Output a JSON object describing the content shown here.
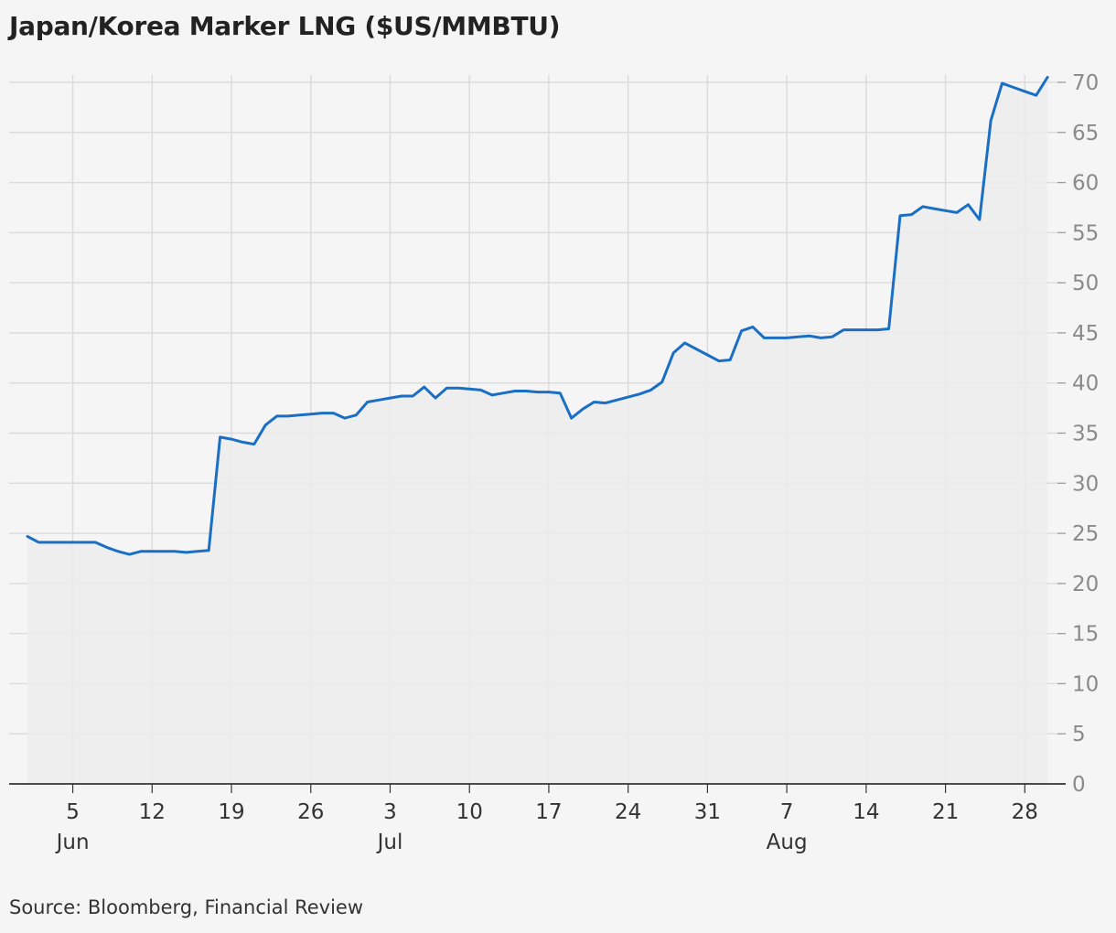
{
  "title": "Japan/Korea Marker LNG ($US/MMBTU)",
  "source": "Source: Bloomberg, Financial Review",
  "colors": {
    "line": "#1a6fc4",
    "area": "#ececec",
    "grid": "#dcdcdc",
    "axis": "#333333",
    "background": "#f5f5f5"
  },
  "chart_data": {
    "type": "area",
    "title": "Japan/Korea Marker LNG ($US/MMBTU)",
    "xlabel": "",
    "ylabel": "",
    "ylim": [
      0,
      70
    ],
    "xlim": [
      "2021-06-01",
      "2021-08-30"
    ],
    "grid": true,
    "y_axis_side": "right",
    "y_ticks": [
      0,
      5,
      10,
      15,
      20,
      25,
      30,
      35,
      40,
      45,
      50,
      55,
      60,
      65,
      70
    ],
    "x_ticks": [
      {
        "date": "2021-06-05",
        "label": "5",
        "month": "Jun"
      },
      {
        "date": "2021-06-12",
        "label": "12",
        "month": ""
      },
      {
        "date": "2021-06-19",
        "label": "19",
        "month": ""
      },
      {
        "date": "2021-06-26",
        "label": "26",
        "month": ""
      },
      {
        "date": "2021-07-03",
        "label": "3",
        "month": "Jul"
      },
      {
        "date": "2021-07-10",
        "label": "10",
        "month": ""
      },
      {
        "date": "2021-07-17",
        "label": "17",
        "month": ""
      },
      {
        "date": "2021-07-24",
        "label": "24",
        "month": ""
      },
      {
        "date": "2021-07-31",
        "label": "31",
        "month": ""
      },
      {
        "date": "2021-08-07",
        "label": "7",
        "month": "Aug"
      },
      {
        "date": "2021-08-14",
        "label": "14",
        "month": ""
      },
      {
        "date": "2021-08-21",
        "label": "21",
        "month": ""
      },
      {
        "date": "2021-08-28",
        "label": "28",
        "month": ""
      }
    ],
    "series": [
      {
        "points": [
          [
            "2021-06-01",
            24.7
          ],
          [
            "2021-06-02",
            24.1
          ],
          [
            "2021-06-03",
            24.1
          ],
          [
            "2021-06-04",
            24.1
          ],
          [
            "2021-06-05",
            24.1
          ],
          [
            "2021-06-06",
            24.1
          ],
          [
            "2021-06-07",
            24.1
          ],
          [
            "2021-06-08",
            23.6
          ],
          [
            "2021-06-09",
            23.2
          ],
          [
            "2021-06-10",
            22.9
          ],
          [
            "2021-06-11",
            23.2
          ],
          [
            "2021-06-12",
            23.2
          ],
          [
            "2021-06-13",
            23.2
          ],
          [
            "2021-06-14",
            23.2
          ],
          [
            "2021-06-15",
            23.1
          ],
          [
            "2021-06-16",
            23.2
          ],
          [
            "2021-06-17",
            23.3
          ],
          [
            "2021-06-18",
            34.6
          ],
          [
            "2021-06-19",
            34.4
          ],
          [
            "2021-06-20",
            34.1
          ],
          [
            "2021-06-21",
            33.9
          ],
          [
            "2021-06-22",
            35.8
          ],
          [
            "2021-06-23",
            36.7
          ],
          [
            "2021-06-24",
            36.7
          ],
          [
            "2021-06-25",
            36.8
          ],
          [
            "2021-06-26",
            36.9
          ],
          [
            "2021-06-27",
            37.0
          ],
          [
            "2021-06-28",
            37.0
          ],
          [
            "2021-06-29",
            36.5
          ],
          [
            "2021-06-30",
            36.8
          ],
          [
            "2021-07-01",
            38.1
          ],
          [
            "2021-07-02",
            38.3
          ],
          [
            "2021-07-03",
            38.5
          ],
          [
            "2021-07-04",
            38.7
          ],
          [
            "2021-07-05",
            38.7
          ],
          [
            "2021-07-06",
            39.6
          ],
          [
            "2021-07-07",
            38.5
          ],
          [
            "2021-07-08",
            39.5
          ],
          [
            "2021-07-09",
            39.5
          ],
          [
            "2021-07-10",
            39.4
          ],
          [
            "2021-07-11",
            39.3
          ],
          [
            "2021-07-12",
            38.8
          ],
          [
            "2021-07-13",
            39.0
          ],
          [
            "2021-07-14",
            39.2
          ],
          [
            "2021-07-15",
            39.2
          ],
          [
            "2021-07-16",
            39.1
          ],
          [
            "2021-07-17",
            39.1
          ],
          [
            "2021-07-18",
            39.0
          ],
          [
            "2021-07-19",
            36.5
          ],
          [
            "2021-07-20",
            37.4
          ],
          [
            "2021-07-21",
            38.1
          ],
          [
            "2021-07-22",
            38.0
          ],
          [
            "2021-07-23",
            38.3
          ],
          [
            "2021-07-24",
            38.6
          ],
          [
            "2021-07-25",
            38.9
          ],
          [
            "2021-07-26",
            39.3
          ],
          [
            "2021-07-27",
            40.1
          ],
          [
            "2021-07-28",
            43.0
          ],
          [
            "2021-07-29",
            44.0
          ],
          [
            "2021-07-30",
            43.4
          ],
          [
            "2021-07-31",
            42.8
          ],
          [
            "2021-08-01",
            42.2
          ],
          [
            "2021-08-02",
            42.3
          ],
          [
            "2021-08-03",
            45.2
          ],
          [
            "2021-08-04",
            45.6
          ],
          [
            "2021-08-05",
            44.5
          ],
          [
            "2021-08-06",
            44.5
          ],
          [
            "2021-08-07",
            44.5
          ],
          [
            "2021-08-08",
            44.6
          ],
          [
            "2021-08-09",
            44.7
          ],
          [
            "2021-08-10",
            44.5
          ],
          [
            "2021-08-11",
            44.6
          ],
          [
            "2021-08-12",
            45.3
          ],
          [
            "2021-08-13",
            45.3
          ],
          [
            "2021-08-14",
            45.3
          ],
          [
            "2021-08-15",
            45.3
          ],
          [
            "2021-08-16",
            45.4
          ],
          [
            "2021-08-17",
            56.7
          ],
          [
            "2021-08-18",
            56.8
          ],
          [
            "2021-08-19",
            57.6
          ],
          [
            "2021-08-20",
            57.4
          ],
          [
            "2021-08-21",
            57.2
          ],
          [
            "2021-08-22",
            57.0
          ],
          [
            "2021-08-23",
            57.8
          ],
          [
            "2021-08-24",
            56.3
          ],
          [
            "2021-08-25",
            66.2
          ],
          [
            "2021-08-26",
            69.9
          ],
          [
            "2021-08-27",
            69.5
          ],
          [
            "2021-08-28",
            69.1
          ],
          [
            "2021-08-29",
            68.7
          ],
          [
            "2021-08-30",
            70.5
          ]
        ]
      }
    ]
  }
}
